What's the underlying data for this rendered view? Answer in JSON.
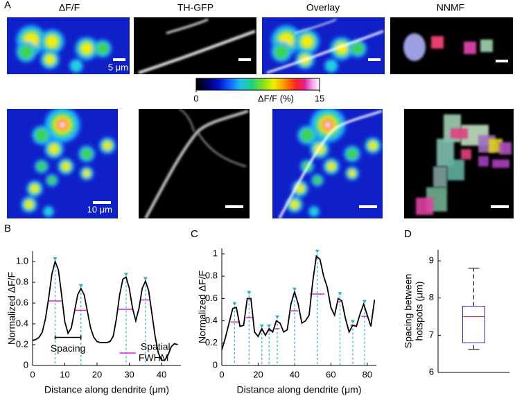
{
  "panel_labels": [
    "A",
    "B",
    "C",
    "D"
  ],
  "images": {
    "titles": [
      "ΔF/F",
      "TH-GFP",
      "Overlay",
      "NNMF"
    ],
    "scale_bars": [
      "5 μm",
      "10 μm"
    ],
    "colorbar": {
      "label": "ΔF/F (%)",
      "lim": [
        0,
        15
      ],
      "ticks": [
        0,
        15
      ]
    }
  },
  "chart_data": [
    {
      "type": "line",
      "xlabel": "Distance along dendrite (μm)",
      "ylabel": "Normalized ΔF/F",
      "x": [
        0,
        1,
        2,
        3,
        4,
        5,
        6,
        7,
        8,
        9,
        10,
        11,
        12,
        13,
        14,
        15,
        16,
        17,
        18,
        19,
        20,
        21,
        22,
        23,
        24,
        25,
        26,
        27,
        28,
        29,
        30,
        31,
        32,
        33,
        34,
        35,
        36,
        37,
        38,
        39,
        40,
        41,
        42,
        43,
        44,
        45
      ],
      "values": [
        0.24,
        0.25,
        0.27,
        0.32,
        0.45,
        0.65,
        0.88,
        1.0,
        0.92,
        0.68,
        0.42,
        0.31,
        0.36,
        0.52,
        0.68,
        0.74,
        0.68,
        0.52,
        0.36,
        0.27,
        0.23,
        0.22,
        0.22,
        0.22,
        0.23,
        0.28,
        0.45,
        0.68,
        0.83,
        0.85,
        0.74,
        0.55,
        0.43,
        0.55,
        0.74,
        0.81,
        0.72,
        0.5,
        0.28,
        0.12,
        0.05,
        0.05,
        0.1,
        0.18,
        0.21,
        0.2
      ],
      "color": "#000000",
      "xlim": [
        0,
        46
      ],
      "xticks": [
        0,
        10,
        20,
        30,
        40
      ],
      "ylim": [
        0,
        1.1
      ],
      "yticks": [
        0,
        0.2,
        0.4,
        0.6,
        0.8,
        {
          "value": 1,
          "label": "1.0"
        }
      ],
      "peaks": {
        "x": [
          7,
          15,
          29,
          35
        ],
        "values": [
          1.0,
          0.74,
          0.85,
          0.81
        ],
        "color": "#1fb5cc"
      },
      "fwhm": {
        "x_start": [
          4.9,
          13.3,
          26.6,
          33.6
        ],
        "x_end": [
          9.1,
          16.8,
          31.0,
          36.4
        ],
        "values": [
          0.62,
          0.53,
          0.54,
          0.63
        ],
        "color": "#e020d0"
      },
      "annotations": [
        {
          "lines": [
            "Spacing"
          ],
          "x": [
            7,
            15
          ],
          "y": 0.27,
          "color": "#000000"
        },
        {
          "lines": [
            "Spatial",
            "FWHM"
          ],
          "x": [
            27,
            32
          ],
          "y": 0.12,
          "color": "#e020d0"
        }
      ]
    },
    {
      "type": "line",
      "xlabel": "Distance along dendrite (μm)",
      "ylabel": "Normalized ΔF/F",
      "x": [
        0,
        2,
        4,
        6,
        8,
        10,
        12,
        14,
        16,
        18,
        20,
        22,
        24,
        26,
        28,
        30,
        32,
        34,
        36,
        38,
        40,
        42,
        44,
        46,
        48,
        50,
        52,
        54,
        56,
        58,
        60,
        62,
        64,
        66,
        68,
        70,
        72,
        74,
        76,
        78,
        80,
        82,
        84
      ],
      "values": [
        0.14,
        0.25,
        0.38,
        0.51,
        0.52,
        0.35,
        0.36,
        0.6,
        0.6,
        0.3,
        0.26,
        0.33,
        0.27,
        0.33,
        0.3,
        0.4,
        0.38,
        0.3,
        0.32,
        0.55,
        0.66,
        0.55,
        0.38,
        0.4,
        0.45,
        0.75,
        0.98,
        0.95,
        0.8,
        0.7,
        0.52,
        0.45,
        0.6,
        0.58,
        0.42,
        0.3,
        0.36,
        0.35,
        0.46,
        0.55,
        0.45,
        0.35,
        0.59
      ],
      "color": "#000000",
      "xlim": [
        0,
        85
      ],
      "xticks": [
        0,
        20,
        40,
        60,
        80
      ],
      "ylim": [
        0,
        1.05
      ],
      "yticks": [
        0,
        0.2,
        0.4,
        0.6,
        0.8,
        1
      ],
      "peaks": {
        "x": [
          7,
          15,
          22,
          26,
          30.5,
          40,
          52.5,
          65,
          72,
          78.5
        ],
        "values": [
          0.53,
          0.63,
          0.33,
          0.33,
          0.41,
          0.66,
          1.0,
          0.62,
          0.37,
          0.55
        ],
        "color": "#1fb5cc"
      },
      "fwhm": {
        "x_start": [
          4.8,
          13.4,
          20.8,
          24.8,
          29.2,
          38.0,
          48.5,
          63.8,
          70.8,
          76.8
        ],
        "x_end": [
          9.2,
          16.6,
          23.2,
          27.2,
          31.8,
          42.0,
          56.5,
          66.2,
          73.2,
          80.2
        ],
        "values": [
          0.39,
          0.43,
          0.31,
          0.31,
          0.33,
          0.49,
          0.64,
          0.57,
          0.36,
          0.44
        ],
        "color": "#e020d0"
      }
    },
    {
      "type": "box",
      "ylabel_lines": [
        "Spacing between",
        "hotspots (μm)"
      ],
      "whisker_low": 6.62,
      "q1": 6.8,
      "median": 7.5,
      "q3": 7.78,
      "whisker_high": 8.8,
      "box_color": "#3030e0",
      "median_color": "#e03030",
      "ylim": [
        6,
        9.3
      ],
      "yticks": [
        6,
        7,
        8,
        9
      ]
    }
  ]
}
